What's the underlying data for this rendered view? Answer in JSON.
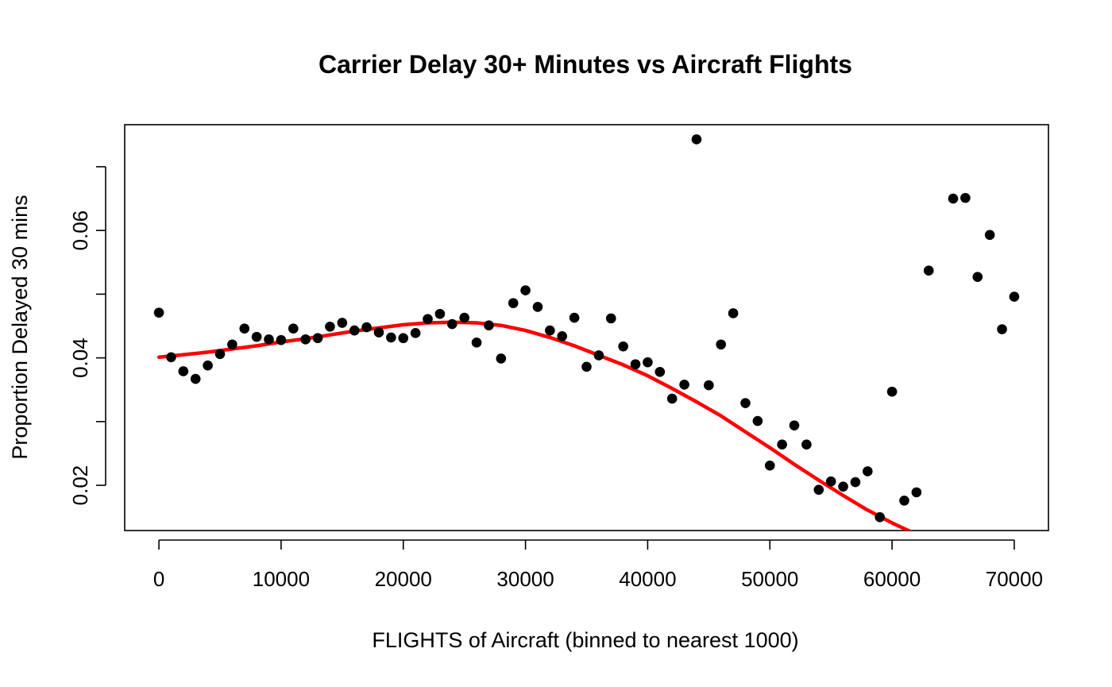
{
  "chart_data": {
    "type": "scatter",
    "title": "Carrier Delay 30+ Minutes vs Aircraft Flights",
    "xlabel": "FLIGHTS of Aircraft (binned to nearest 1000)",
    "ylabel": "Proportion Delayed 30 mins",
    "xlim": [
      -2800,
      72800
    ],
    "ylim": [
      0.0129,
      0.0766
    ],
    "x_ticks": [
      0,
      10000,
      20000,
      30000,
      40000,
      50000,
      60000,
      70000
    ],
    "x_tick_labels": [
      "0",
      "10000",
      "20000",
      "30000",
      "40000",
      "50000",
      "60000",
      "70000"
    ],
    "y_ticks": [
      0.02,
      0.03,
      0.04,
      0.05,
      0.06,
      0.07
    ],
    "y_tick_labels": [
      "0.02",
      "",
      "0.04",
      "",
      "0.06",
      ""
    ],
    "grid": false,
    "legend": "none",
    "series": [
      {
        "kind": "points",
        "color": "#000000",
        "x": [
          0,
          1000,
          2000,
          3000,
          4000,
          5000,
          6000,
          7000,
          8000,
          9000,
          10000,
          11000,
          12000,
          13000,
          14000,
          15000,
          16000,
          17000,
          18000,
          19000,
          20000,
          21000,
          22000,
          23000,
          24000,
          25000,
          26000,
          27000,
          28000,
          29000,
          30000,
          31000,
          32000,
          33000,
          34000,
          35000,
          36000,
          37000,
          38000,
          39000,
          40000,
          41000,
          42000,
          43000,
          44000,
          45000,
          46000,
          47000,
          48000,
          49000,
          50000,
          51000,
          52000,
          53000,
          54000,
          55000,
          56000,
          57000,
          58000,
          59000,
          60000,
          61000,
          62000,
          63000,
          64000,
          65000,
          66000,
          67000,
          68000,
          69000,
          70000
        ],
        "y": [
          0.0471,
          0.0401,
          0.0379,
          0.0367,
          0.0388,
          0.0406,
          0.0421,
          0.0446,
          0.0433,
          0.0429,
          0.0428,
          0.0446,
          0.0429,
          0.0431,
          0.0449,
          0.0455,
          0.0443,
          0.0448,
          0.044,
          0.0432,
          0.0431,
          0.0439,
          0.0461,
          0.0469,
          0.0453,
          0.0463,
          0.0424,
          0.0451,
          0.0399,
          0.0486,
          0.0506,
          0.048,
          0.0443,
          0.0434,
          0.0463,
          0.0386,
          0.0404,
          0.0462,
          0.0418,
          0.039,
          0.0393,
          0.0378,
          0.0336,
          0.0358,
          0.0743,
          0.0357,
          0.0421,
          0.047,
          0.0329,
          0.0301,
          0.0231,
          0.0264,
          0.0294,
          0.0264,
          0.0193,
          0.0206,
          0.0198,
          0.0205,
          0.0222,
          0.015,
          0.0347,
          0.0176,
          0.0189,
          0.0537,
          null,
          0.065,
          0.0651,
          0.0527,
          0.0593,
          0.0445,
          0.0496
        ]
      },
      {
        "kind": "line",
        "color": "#ff0000",
        "x": [
          0,
          2000,
          4000,
          6000,
          8000,
          10000,
          12000,
          14000,
          16000,
          18000,
          20000,
          22000,
          24000,
          26000,
          28000,
          30000,
          32000,
          34000,
          36000,
          38000,
          40000,
          42000,
          44000,
          46000,
          48000,
          50000,
          52000,
          54000,
          56000,
          58000,
          60000,
          62000
        ],
        "y": [
          0.0401,
          0.0405,
          0.0409,
          0.0414,
          0.0419,
          0.0425,
          0.043,
          0.0436,
          0.0442,
          0.0447,
          0.0452,
          0.0455,
          0.0456,
          0.0455,
          0.0451,
          0.0443,
          0.0432,
          0.0419,
          0.0404,
          0.0389,
          0.0372,
          0.0352,
          0.0331,
          0.0309,
          0.0284,
          0.0259,
          0.0233,
          0.0208,
          0.0184,
          0.0161,
          0.0141,
          0.0123
        ]
      }
    ]
  }
}
